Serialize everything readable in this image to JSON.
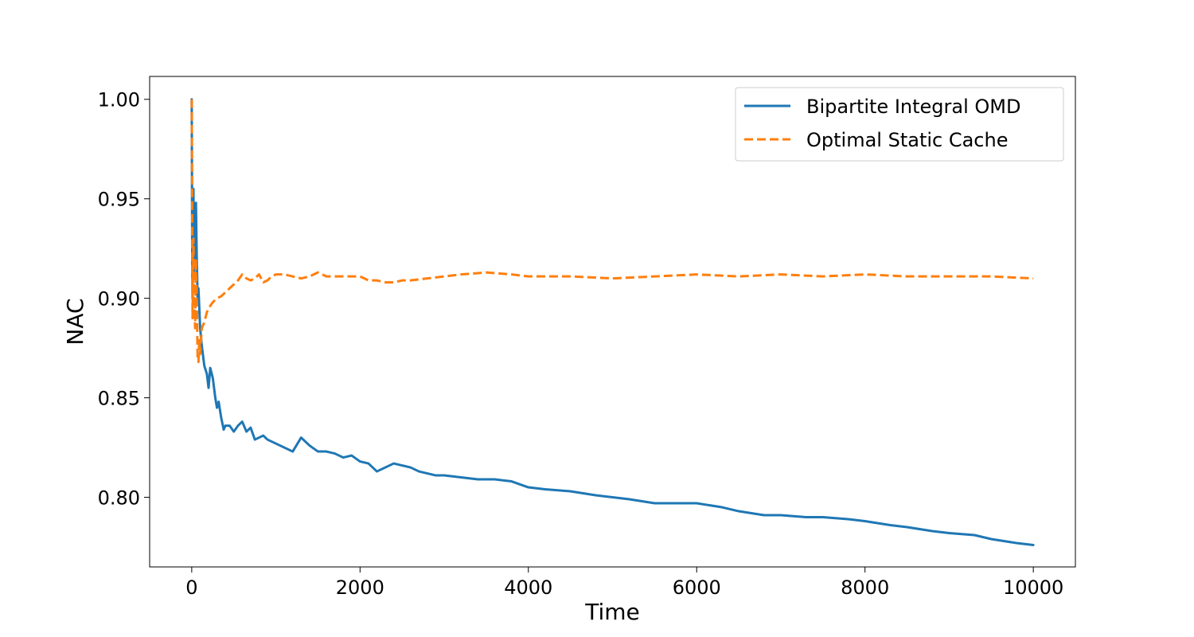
{
  "chart_data": {
    "type": "line",
    "title": "",
    "xlabel": "Time",
    "ylabel": "NAC",
    "xlim": [
      -500,
      10500
    ],
    "ylim": [
      0.765,
      1.0115
    ],
    "xticks": [
      0,
      2000,
      4000,
      6000,
      8000,
      10000
    ],
    "xtick_labels": [
      "0",
      "2000",
      "4000",
      "6000",
      "8000",
      "10000"
    ],
    "yticks": [
      0.8,
      0.85,
      0.9,
      0.95,
      1.0
    ],
    "ytick_labels": [
      "0.80",
      "0.85",
      "0.90",
      "0.95",
      "1.00"
    ],
    "grid": false,
    "legend_position": "top-right",
    "series": [
      {
        "name": "Bipartite Integral OMD",
        "color": "#1f77b4",
        "style": "solid",
        "x": [
          0,
          5,
          10,
          20,
          30,
          40,
          50,
          60,
          70,
          80,
          90,
          100,
          120,
          150,
          180,
          200,
          220,
          250,
          280,
          300,
          320,
          350,
          380,
          400,
          450,
          500,
          550,
          600,
          650,
          700,
          750,
          800,
          850,
          900,
          1000,
          1100,
          1200,
          1300,
          1400,
          1500,
          1600,
          1700,
          1800,
          1900,
          2000,
          2100,
          2200,
          2300,
          2400,
          2500,
          2600,
          2700,
          2800,
          2900,
          3000,
          3200,
          3400,
          3600,
          3800,
          4000,
          4200,
          4500,
          4800,
          5000,
          5200,
          5500,
          5800,
          6000,
          6300,
          6500,
          6800,
          7000,
          7300,
          7500,
          7800,
          8000,
          8300,
          8500,
          8800,
          9000,
          9300,
          9500,
          9800,
          10000
        ],
        "y": [
          1.0,
          0.93,
          0.9,
          0.955,
          0.91,
          0.94,
          0.948,
          0.92,
          0.9,
          0.905,
          0.895,
          0.885,
          0.876,
          0.866,
          0.862,
          0.855,
          0.865,
          0.86,
          0.85,
          0.845,
          0.848,
          0.84,
          0.834,
          0.836,
          0.836,
          0.833,
          0.836,
          0.838,
          0.833,
          0.835,
          0.829,
          0.83,
          0.831,
          0.829,
          0.827,
          0.825,
          0.823,
          0.83,
          0.826,
          0.823,
          0.823,
          0.822,
          0.82,
          0.821,
          0.818,
          0.817,
          0.813,
          0.815,
          0.817,
          0.816,
          0.815,
          0.813,
          0.812,
          0.811,
          0.811,
          0.81,
          0.809,
          0.809,
          0.808,
          0.805,
          0.804,
          0.803,
          0.801,
          0.8,
          0.799,
          0.797,
          0.797,
          0.797,
          0.795,
          0.793,
          0.791,
          0.791,
          0.79,
          0.79,
          0.789,
          0.788,
          0.786,
          0.785,
          0.783,
          0.782,
          0.781,
          0.779,
          0.777,
          0.776
        ]
      },
      {
        "name": "Optimal Static Cache",
        "color": "#ff7f0e",
        "style": "dashed",
        "x": [
          0,
          5,
          10,
          20,
          30,
          40,
          50,
          60,
          70,
          80,
          90,
          100,
          120,
          150,
          180,
          200,
          250,
          300,
          350,
          400,
          450,
          500,
          550,
          600,
          650,
          700,
          750,
          800,
          850,
          900,
          950,
          1000,
          1100,
          1200,
          1300,
          1400,
          1500,
          1600,
          1700,
          1800,
          2000,
          2100,
          2200,
          2300,
          2400,
          2500,
          2600,
          2800,
          3000,
          3200,
          3500,
          3800,
          4000,
          4500,
          5000,
          5500,
          6000,
          6500,
          7000,
          7500,
          8000,
          8500,
          9000,
          9500,
          10000
        ],
        "y": [
          1.0,
          0.95,
          0.89,
          0.93,
          0.9,
          0.885,
          0.92,
          0.9,
          0.87,
          0.868,
          0.88,
          0.872,
          0.885,
          0.888,
          0.893,
          0.895,
          0.898,
          0.9,
          0.901,
          0.903,
          0.905,
          0.907,
          0.909,
          0.912,
          0.91,
          0.909,
          0.91,
          0.912,
          0.908,
          0.909,
          0.911,
          0.912,
          0.912,
          0.911,
          0.91,
          0.911,
          0.913,
          0.911,
          0.911,
          0.911,
          0.911,
          0.909,
          0.909,
          0.908,
          0.908,
          0.909,
          0.909,
          0.91,
          0.911,
          0.912,
          0.913,
          0.912,
          0.911,
          0.911,
          0.91,
          0.911,
          0.912,
          0.911,
          0.912,
          0.911,
          0.912,
          0.911,
          0.911,
          0.911,
          0.91
        ]
      }
    ]
  }
}
